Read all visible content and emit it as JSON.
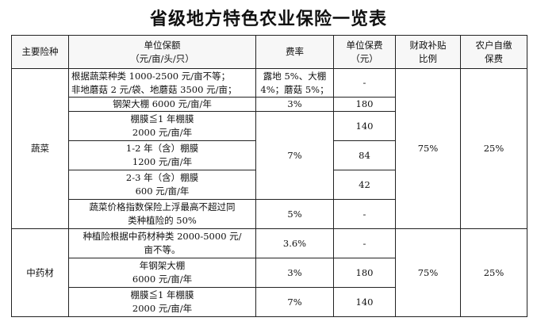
{
  "title": "省级地方特色农业保险一览表",
  "headers": {
    "category": "主要险种",
    "unit_amount_line1": "单位保额",
    "unit_amount_line2": "（元/亩/头/只）",
    "rate": "费率",
    "premium_line1": "单位保费",
    "premium_line2": "（元）",
    "subsidy_line1": "财政补贴",
    "subsidy_line2": "比例",
    "self_pay_line1": "农户自缴",
    "self_pay_line2": "保费"
  },
  "vegetables": {
    "category": "蔬菜",
    "subsidy": "75%",
    "self_pay": "25%",
    "rows": [
      {
        "amount_line1": "根据蔬菜种类 1000-2500 元/亩不等；",
        "amount_line2": "非地蘑菇 2 元/袋、地蘑菇 3500 元/亩；",
        "rate_line1": "露地 5%、大棚",
        "rate_line2": "4%；蘑菇 5%；",
        "premium": "-"
      },
      {
        "amount_line1": "钢架大棚 6000 元/亩/年",
        "rate": "3%",
        "premium": "180"
      },
      {
        "amount_line1": "棚膜≦1 年棚膜",
        "amount_line2": "2000 元/亩/年",
        "premium": "140"
      },
      {
        "amount_line1": "1-2 年（含）棚膜",
        "amount_line2": "1200 元/亩/年",
        "premium": "84"
      },
      {
        "amount_line1": "2-3 年（含）棚膜",
        "amount_line2": "600 元/亩/年",
        "premium": "42"
      },
      {
        "amount_line1": "蔬菜价格指数保险上浮最高不超过同",
        "amount_line2": "类种植险的 50%",
        "rate": "5%",
        "premium": "-"
      }
    ],
    "film_rate": "7%"
  },
  "herbs": {
    "category": "中药材",
    "subsidy": "75%",
    "self_pay": "25%",
    "rows": [
      {
        "amount_line1": "种植险根据中药材种类 2000-5000 元/",
        "amount_line2": "亩不等。",
        "rate": "3.6%",
        "premium": "-"
      },
      {
        "amount_line1": "年钢架大棚",
        "amount_line2": "6000 元/亩/年",
        "rate": "3%",
        "premium": "180"
      },
      {
        "amount_line1": "棚膜≦1 年棚膜",
        "amount_line2": "2000 元/亩/年",
        "rate": "7%",
        "premium": "140"
      }
    ]
  }
}
